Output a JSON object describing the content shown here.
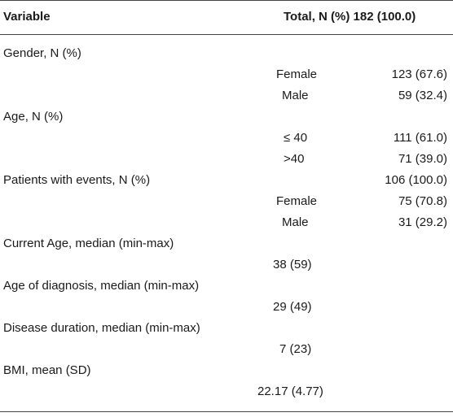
{
  "header": {
    "variable": "Variable",
    "total": "Total, N (%) 182 (100.0)"
  },
  "rows": [
    {
      "label": "Gender, N (%)",
      "sub": "",
      "value": ""
    },
    {
      "label": "",
      "sub": "Female",
      "value": "123 (67.6)"
    },
    {
      "label": "",
      "sub": "Male",
      "value": "59 (32.4)"
    },
    {
      "label": "Age, N (%)",
      "sub": "",
      "value": ""
    },
    {
      "label": "",
      "sub": "≤ 40",
      "value": "111 (61.0)"
    },
    {
      "label": "",
      "sub": ">40",
      "value": "71 (39.0)"
    },
    {
      "label": "Patients with events, N (%)",
      "sub": "",
      "value": "106 (100.0)"
    },
    {
      "label": "",
      "sub": "Female",
      "value": "75 (70.8)"
    },
    {
      "label": "",
      "sub": "Male",
      "value": "31 (29.2)"
    },
    {
      "label": "Current Age, median (min-max)",
      "sub": "",
      "value": ""
    },
    {
      "label": "",
      "sub": "38 (59)",
      "value": ""
    },
    {
      "label": "Age of diagnosis, median (min-max)",
      "sub": "",
      "value": ""
    },
    {
      "label": "",
      "sub": "29 (49)",
      "value": ""
    },
    {
      "label": "Disease duration, median (min-max)",
      "sub": "",
      "value": ""
    },
    {
      "label": "",
      "sub": "7 (23)",
      "value": ""
    },
    {
      "label": "BMI, mean (SD)",
      "sub": "",
      "value": ""
    },
    {
      "label": "",
      "sub": "22.17 (4.77)",
      "value": ""
    }
  ]
}
